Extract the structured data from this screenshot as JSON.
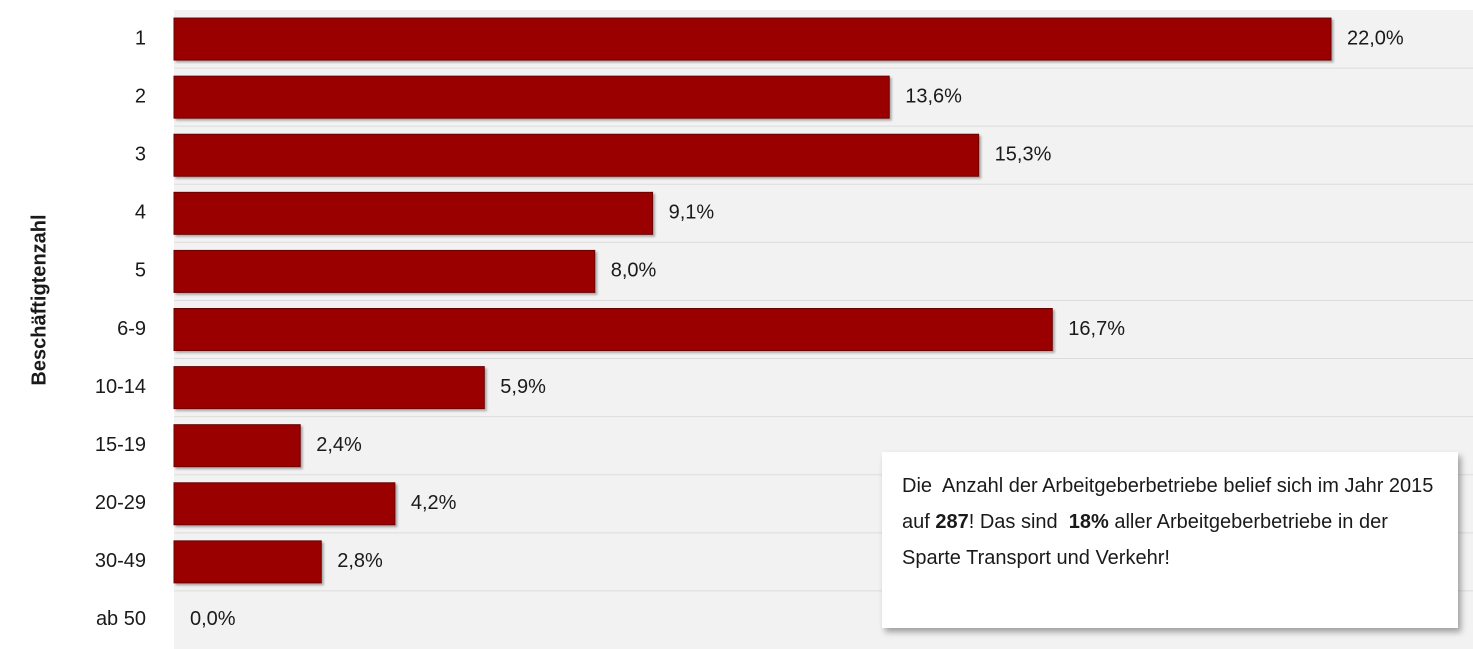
{
  "chart_data": {
    "type": "bar",
    "orientation": "horizontal",
    "y_axis_label": "Beschäftigtenzahl",
    "categories": [
      "1",
      "2",
      "3",
      "4",
      "5",
      "6-9",
      "10-14",
      "15-19",
      "20-29",
      "30-49",
      "ab 50"
    ],
    "values": [
      22.0,
      13.6,
      15.3,
      9.1,
      8.0,
      16.7,
      5.9,
      2.4,
      4.2,
      2.8,
      0.0
    ],
    "value_labels": [
      "22,0%",
      "13,6%",
      "15,3%",
      "9,1%",
      "8,0%",
      "16,7%",
      "5,9%",
      "2,4%",
      "4,2%",
      "2,8%",
      "0,0%"
    ],
    "color": "#9b0000",
    "xlim": [
      0,
      24.7
    ],
    "annotation": [
      {
        "text": "Die  Anzahl der Arbeitgeberbetriebe belief sich im Jahr 2015 auf ",
        "bold": false
      },
      {
        "text": "287",
        "bold": true
      },
      {
        "text": "! Das sind  ",
        "bold": false
      },
      {
        "text": "18%",
        "bold": true
      },
      {
        "text": " aller Arbeitgeberbetriebe in der Sparte Transport und Verkehr!",
        "bold": false
      }
    ]
  }
}
